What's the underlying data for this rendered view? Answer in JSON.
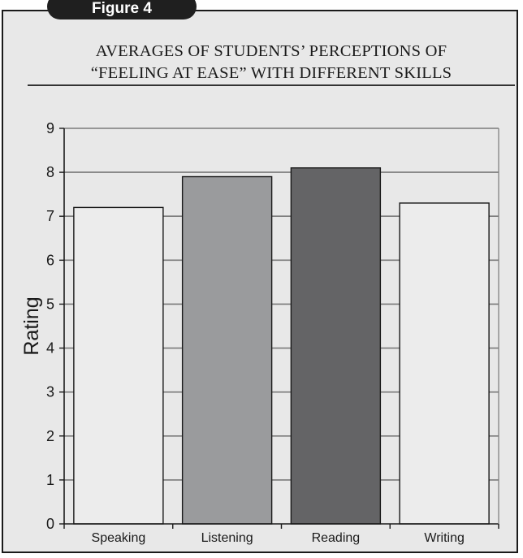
{
  "figure_label": "Figure 4",
  "chart_data": {
    "type": "bar",
    "title_line1": "AVERAGES OF STUDENTS’ PERCEPTIONS OF",
    "title_line2": "“FEELING AT EASE” WITH DIFFERENT SKILLS",
    "xlabel": "",
    "ylabel": "Rating",
    "categories": [
      "Speaking",
      "Listening",
      "Reading",
      "Writing"
    ],
    "values": [
      7.2,
      7.9,
      8.1,
      7.3
    ],
    "ylim": [
      0,
      9
    ],
    "yticks": [
      "0",
      "1",
      "2",
      "3",
      "4",
      "5",
      "6",
      "7",
      "8",
      "9"
    ],
    "grid": true,
    "bar_colors": [
      "#ececec",
      "#9a9b9d",
      "#646466",
      "#ececec"
    ],
    "colors": {
      "panel": "#e8e8e8",
      "gridline": "#7a7a7a",
      "axis": "#1a1a1a"
    }
  }
}
